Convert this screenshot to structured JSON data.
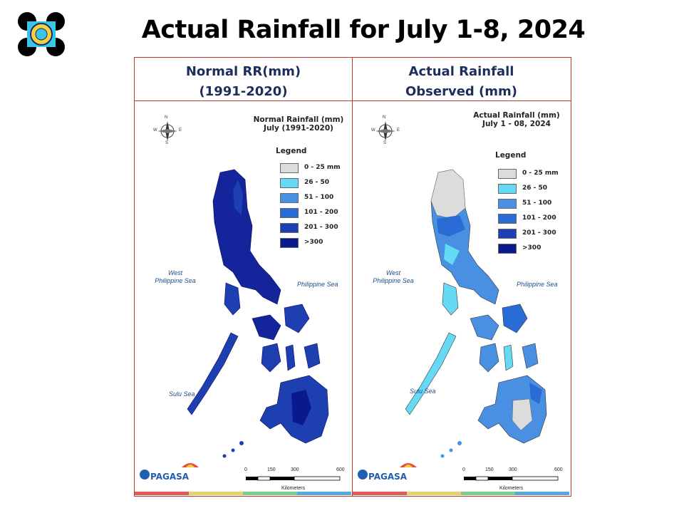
{
  "title": "Actual Rainfall for July 1-8, 2024",
  "panels": [
    {
      "header": [
        "Normal RR(mm)",
        "(1991-2020)"
      ],
      "map_title": [
        "Normal Rainfall (mm)",
        "July (1991-2020)"
      ]
    },
    {
      "header": [
        "Actual Rainfall",
        "Observed (mm)"
      ],
      "map_title": [
        "Actual Rainfall (mm)",
        "July 1 - 08, 2024"
      ]
    }
  ],
  "legend": {
    "title": "Legend",
    "items": [
      {
        "label": "0 - 25 mm",
        "color": "#dcdcdc"
      },
      {
        "label": "26 - 50",
        "color": "#66d9f5"
      },
      {
        "label": "51 - 100",
        "color": "#4a90e2"
      },
      {
        "label": "101 - 200",
        "color": "#2a6cd6"
      },
      {
        "label": "201 - 300",
        "color": "#1d3fb0"
      },
      {
        "label": ">300",
        "color": "#0a1a8c"
      }
    ]
  },
  "sea_labels": {
    "west": [
      "West",
      "Philippine Sea"
    ],
    "east": "Philippine Sea",
    "sulu": "Sulu Sea"
  },
  "compass": {
    "n": "N",
    "s": "S",
    "e": "E",
    "w": "W"
  },
  "scale": {
    "ticks": [
      "0",
      "150",
      "300",
      "600"
    ],
    "unit": "Kilometers"
  },
  "logo_text": "PAGASA"
}
